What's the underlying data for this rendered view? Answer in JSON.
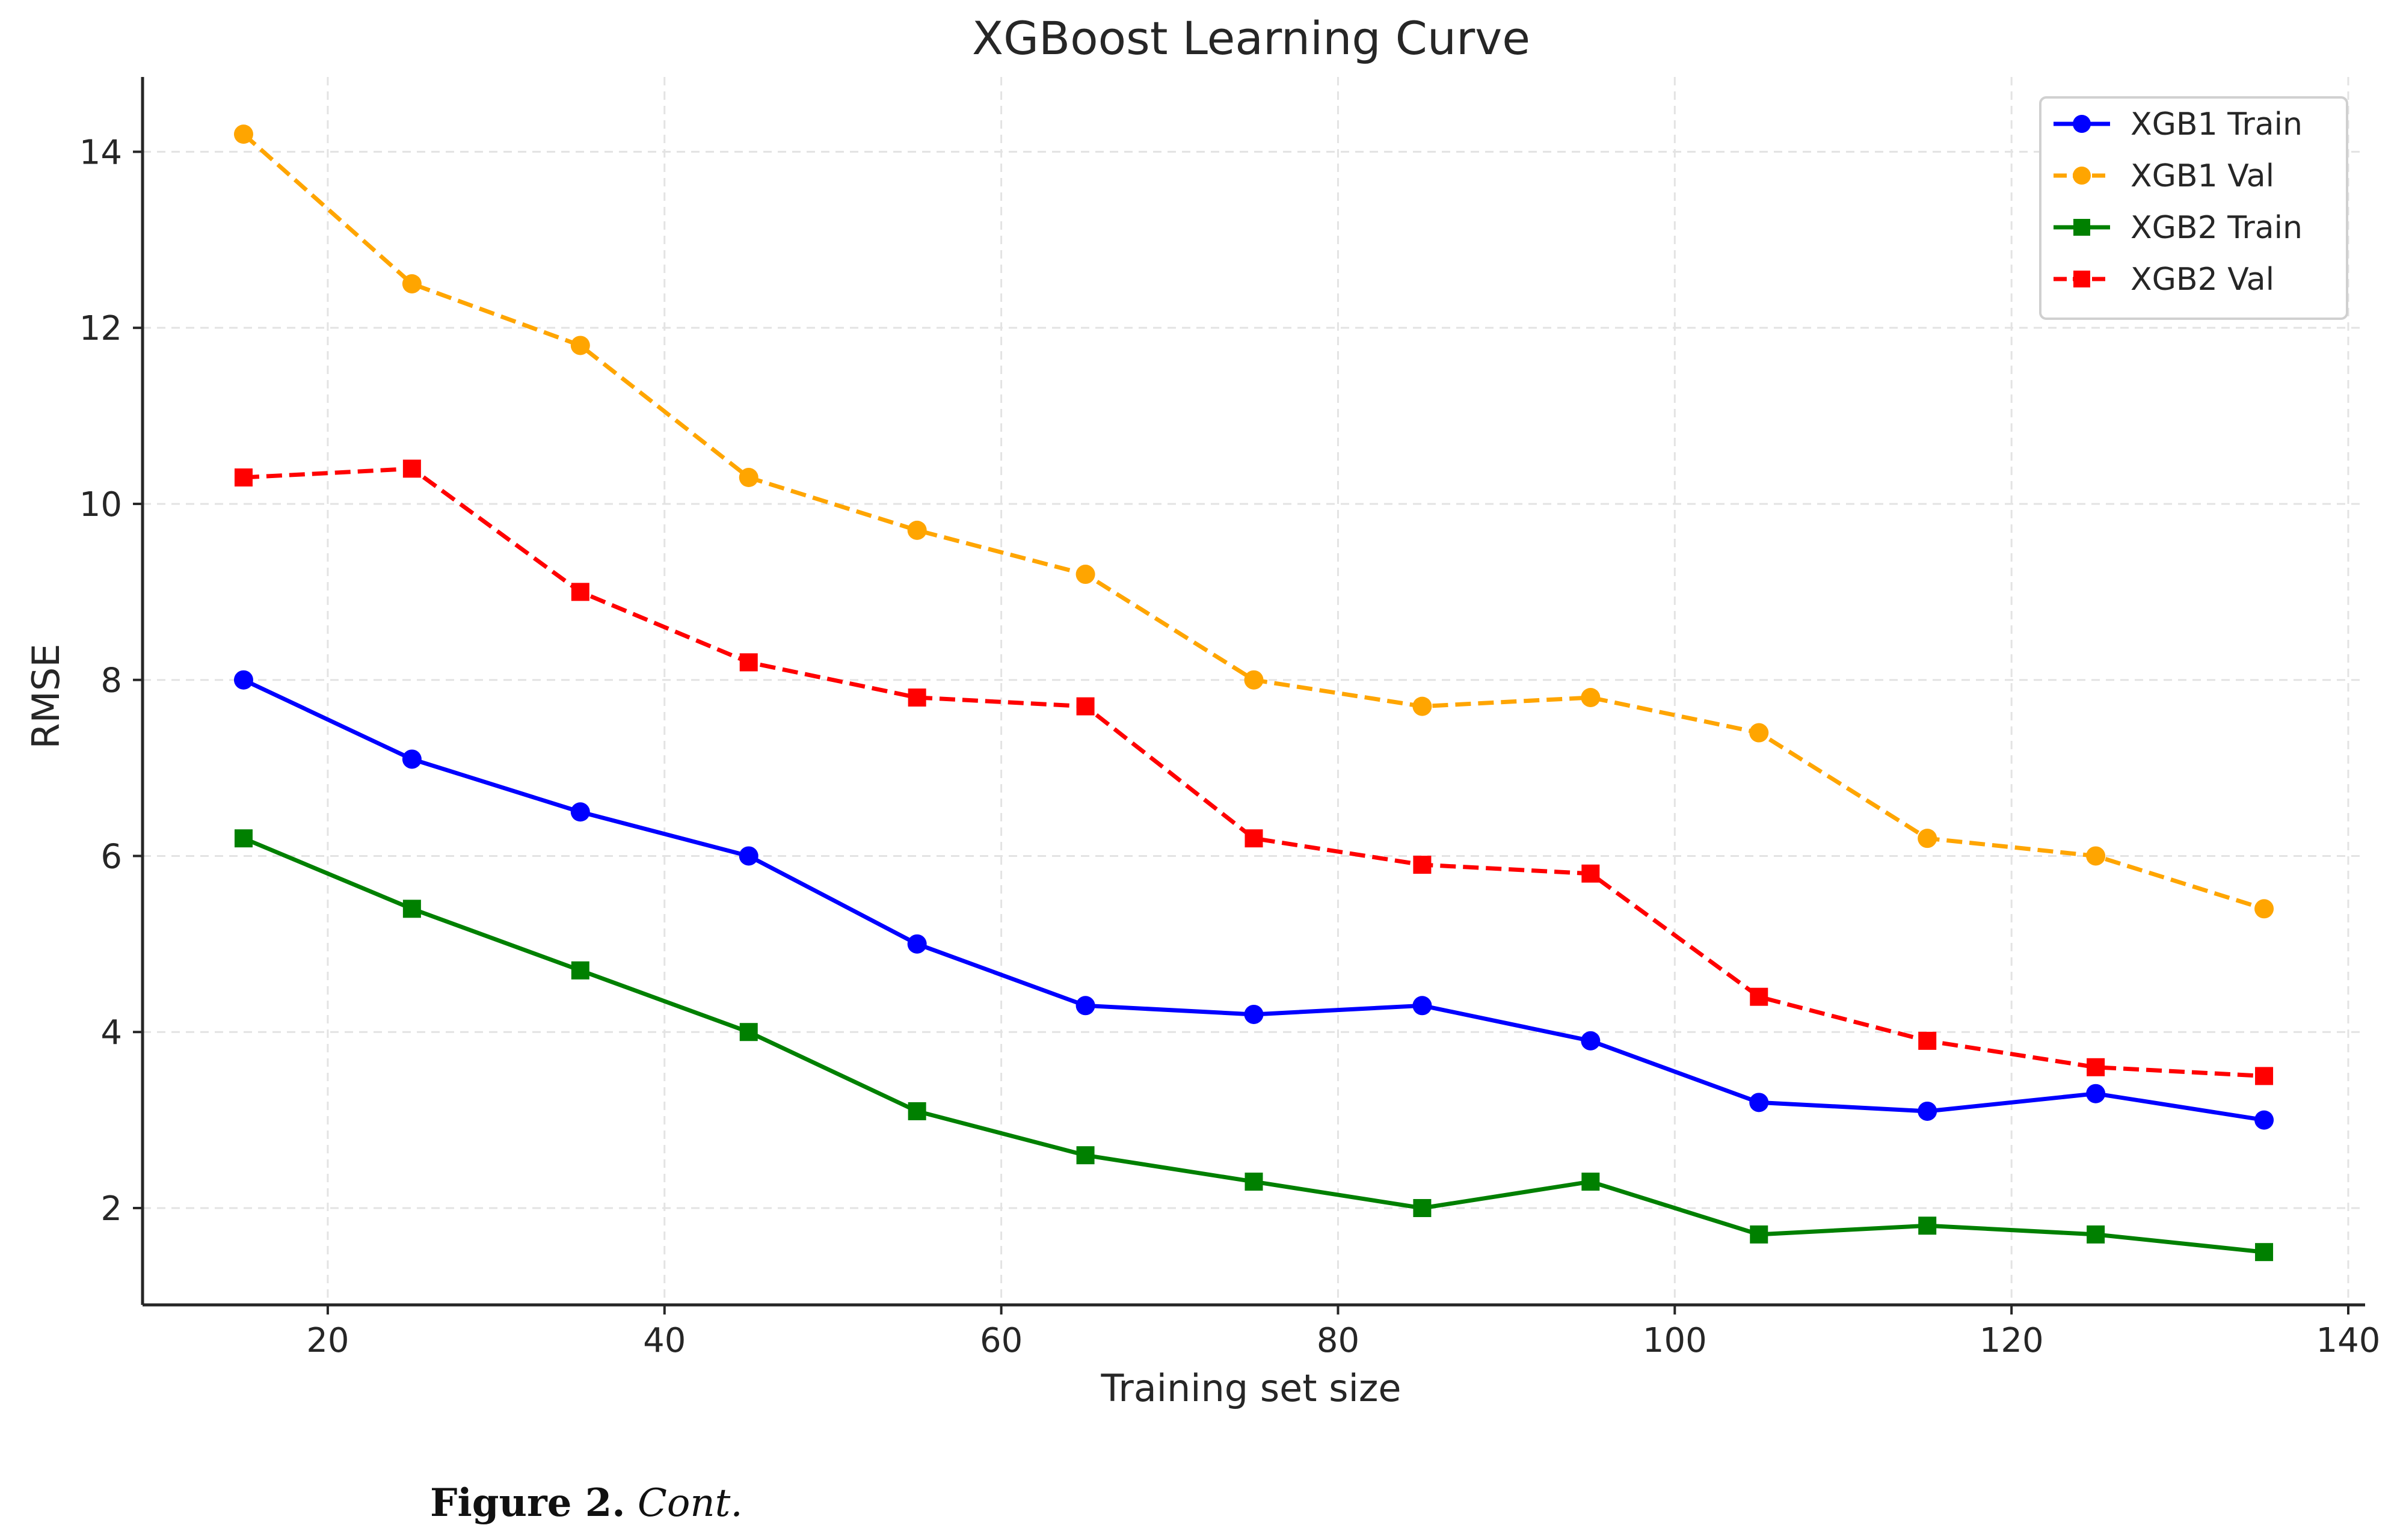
{
  "chart_data": {
    "type": "line",
    "title": "XGBoost Learning Curve",
    "xlabel": "Training set size",
    "ylabel": "RMSE",
    "xlim": [
      9,
      141
    ],
    "ylim": [
      0.9,
      14.85
    ],
    "x_ticks": [
      20,
      40,
      60,
      80,
      100,
      120,
      140
    ],
    "y_ticks": [
      2,
      4,
      6,
      8,
      10,
      12,
      14
    ],
    "grid": true,
    "legend_position": "top-right",
    "x": [
      15,
      25,
      35,
      45,
      55,
      65,
      75,
      85,
      95,
      105,
      115,
      125,
      135
    ],
    "series": [
      {
        "name": "XGB1 Train",
        "color": "#0000ff",
        "dash": "solid",
        "marker": "circle",
        "values": [
          8.0,
          7.1,
          6.5,
          6.0,
          5.0,
          4.3,
          4.2,
          4.3,
          3.9,
          3.2,
          3.1,
          3.3,
          3.0
        ]
      },
      {
        "name": "XGB1 Val",
        "color": "#ffa500",
        "dash": "dashed",
        "marker": "circle",
        "values": [
          14.2,
          12.5,
          11.8,
          10.3,
          9.7,
          9.2,
          8.0,
          7.7,
          7.8,
          7.4,
          6.2,
          6.0,
          5.4
        ]
      },
      {
        "name": "XGB2 Train",
        "color": "#008000",
        "dash": "solid",
        "marker": "square",
        "values": [
          6.2,
          5.4,
          4.7,
          4.0,
          3.1,
          2.6,
          2.3,
          2.0,
          2.3,
          1.7,
          1.8,
          1.7,
          1.5
        ]
      },
      {
        "name": "XGB2 Val",
        "color": "#ff0000",
        "dash": "dashed",
        "marker": "square",
        "values": [
          10.3,
          10.4,
          9.0,
          8.2,
          7.8,
          7.7,
          6.2,
          5.9,
          5.8,
          4.4,
          3.9,
          3.6,
          3.5
        ]
      }
    ]
  },
  "caption": {
    "label": "Figure 2.",
    "text": "Cont."
  }
}
